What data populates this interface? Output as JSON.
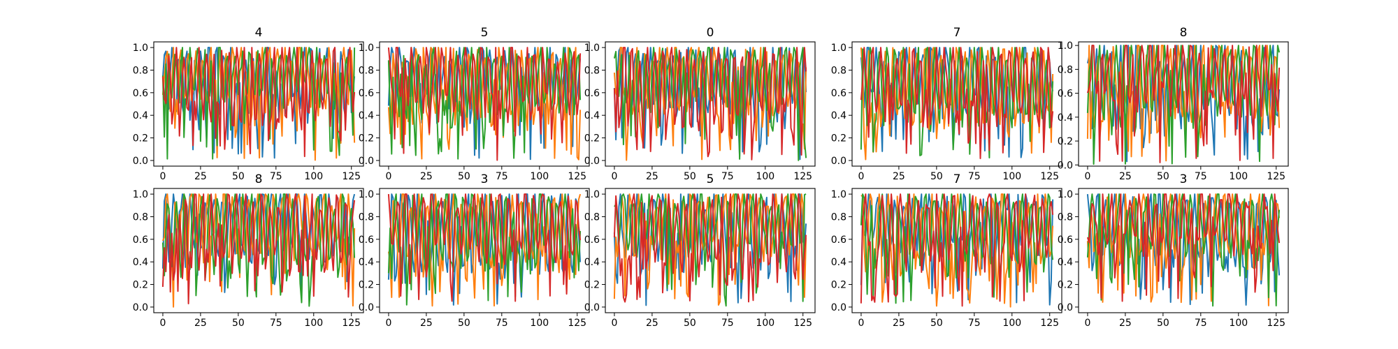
{
  "chart_data": [
    {
      "type": "line",
      "title": "4",
      "xticks": [
        "0",
        "25",
        "50",
        "75",
        "100",
        "125"
      ],
      "yticks": [
        "0.0",
        "0.2",
        "0.4",
        "0.6",
        "0.8",
        "1.0"
      ],
      "xlim": [
        -6,
        133
      ],
      "ylim": [
        -0.05,
        1.05
      ],
      "x_range": [
        0,
        127
      ],
      "series_colors": [
        "#1f77b4",
        "#ff7f0e",
        "#2ca02c",
        "#d62728"
      ]
    },
    {
      "type": "line",
      "title": "5",
      "xticks": [
        "0",
        "25",
        "50",
        "75",
        "100",
        "125"
      ],
      "yticks": [
        "0.0",
        "0.2",
        "0.4",
        "0.6",
        "0.8",
        "1.0"
      ],
      "xlim": [
        -6,
        133
      ],
      "ylim": [
        -0.05,
        1.05
      ],
      "x_range": [
        0,
        127
      ],
      "series_colors": [
        "#1f77b4",
        "#ff7f0e",
        "#2ca02c",
        "#d62728"
      ]
    },
    {
      "type": "line",
      "title": "0",
      "xticks": [
        "0",
        "25",
        "50",
        "75",
        "100",
        "125"
      ],
      "yticks": [
        "0.0",
        "0.2",
        "0.4",
        "0.6",
        "0.8",
        "1.0"
      ],
      "xlim": [
        -6,
        133
      ],
      "ylim": [
        -0.05,
        1.05
      ],
      "x_range": [
        0,
        127
      ],
      "series_colors": [
        "#1f77b4",
        "#ff7f0e",
        "#2ca02c",
        "#d62728"
      ]
    },
    {
      "type": "line",
      "title": "7",
      "xticks": [
        "0",
        "25",
        "50",
        "75",
        "100",
        "125"
      ],
      "yticks": [
        "0.0",
        "0.2",
        "0.4",
        "0.6",
        "0.8",
        "1.0"
      ],
      "xlim": [
        -6,
        133
      ],
      "ylim": [
        -0.05,
        1.05
      ],
      "x_range": [
        0,
        127
      ],
      "series_colors": [
        "#1f77b4",
        "#ff7f0e",
        "#2ca02c",
        "#d62728"
      ]
    },
    {
      "type": "line",
      "title": "8",
      "xticks": [
        "0",
        "25",
        "50",
        "75",
        "100",
        "125"
      ],
      "yticks": [
        "0.0",
        "0.2",
        "0.4",
        "0.6",
        "0.8",
        "1.0"
      ],
      "xlim": [
        -6,
        133
      ],
      "ylim": [
        -0.01,
        1.03
      ],
      "x_range": [
        0,
        127
      ],
      "series_colors": [
        "#1f77b4",
        "#ff7f0e",
        "#2ca02c",
        "#d62728"
      ]
    },
    {
      "type": "line",
      "title": "8",
      "xticks": [
        "0",
        "25",
        "50",
        "75",
        "100",
        "125"
      ],
      "yticks": [
        "0.0",
        "0.2",
        "0.4",
        "0.6",
        "0.8",
        "1.0"
      ],
      "xlim": [
        -6,
        133
      ],
      "ylim": [
        -0.05,
        1.05
      ],
      "x_range": [
        0,
        127
      ],
      "series_colors": [
        "#1f77b4",
        "#ff7f0e",
        "#2ca02c",
        "#d62728"
      ]
    },
    {
      "type": "line",
      "title": "3",
      "xticks": [
        "0",
        "25",
        "50",
        "75",
        "100",
        "125"
      ],
      "yticks": [
        "0.0",
        "0.2",
        "0.4",
        "0.6",
        "0.8",
        "1.0"
      ],
      "xlim": [
        -6,
        133
      ],
      "ylim": [
        -0.05,
        1.05
      ],
      "x_range": [
        0,
        127
      ],
      "series_colors": [
        "#1f77b4",
        "#ff7f0e",
        "#2ca02c",
        "#d62728"
      ]
    },
    {
      "type": "line",
      "title": "5",
      "xticks": [
        "0",
        "25",
        "50",
        "75",
        "100",
        "125"
      ],
      "yticks": [
        "0.0",
        "0.2",
        "0.4",
        "0.6",
        "0.8",
        "1.0"
      ],
      "xlim": [
        -6,
        133
      ],
      "ylim": [
        -0.05,
        1.05
      ],
      "x_range": [
        0,
        127
      ],
      "series_colors": [
        "#1f77b4",
        "#ff7f0e",
        "#2ca02c",
        "#d62728"
      ]
    },
    {
      "type": "line",
      "title": "7",
      "xticks": [
        "0",
        "25",
        "50",
        "75",
        "100",
        "125"
      ],
      "yticks": [
        "0.0",
        "0.2",
        "0.4",
        "0.6",
        "0.8",
        "1.0"
      ],
      "xlim": [
        -6,
        133
      ],
      "ylim": [
        -0.05,
        1.05
      ],
      "x_range": [
        0,
        127
      ],
      "series_colors": [
        "#1f77b4",
        "#ff7f0e",
        "#2ca02c",
        "#d62728"
      ]
    },
    {
      "type": "line",
      "title": "3",
      "xticks": [
        "0",
        "25",
        "50",
        "75",
        "100",
        "125"
      ],
      "yticks": [
        "0.0",
        "0.2",
        "0.4",
        "0.6",
        "0.8",
        "1.0"
      ],
      "xlim": [
        -6,
        133
      ],
      "ylim": [
        -0.05,
        1.05
      ],
      "x_range": [
        0,
        127
      ],
      "series_colors": [
        "#1f77b4",
        "#ff7f0e",
        "#2ca02c",
        "#d62728"
      ]
    }
  ]
}
